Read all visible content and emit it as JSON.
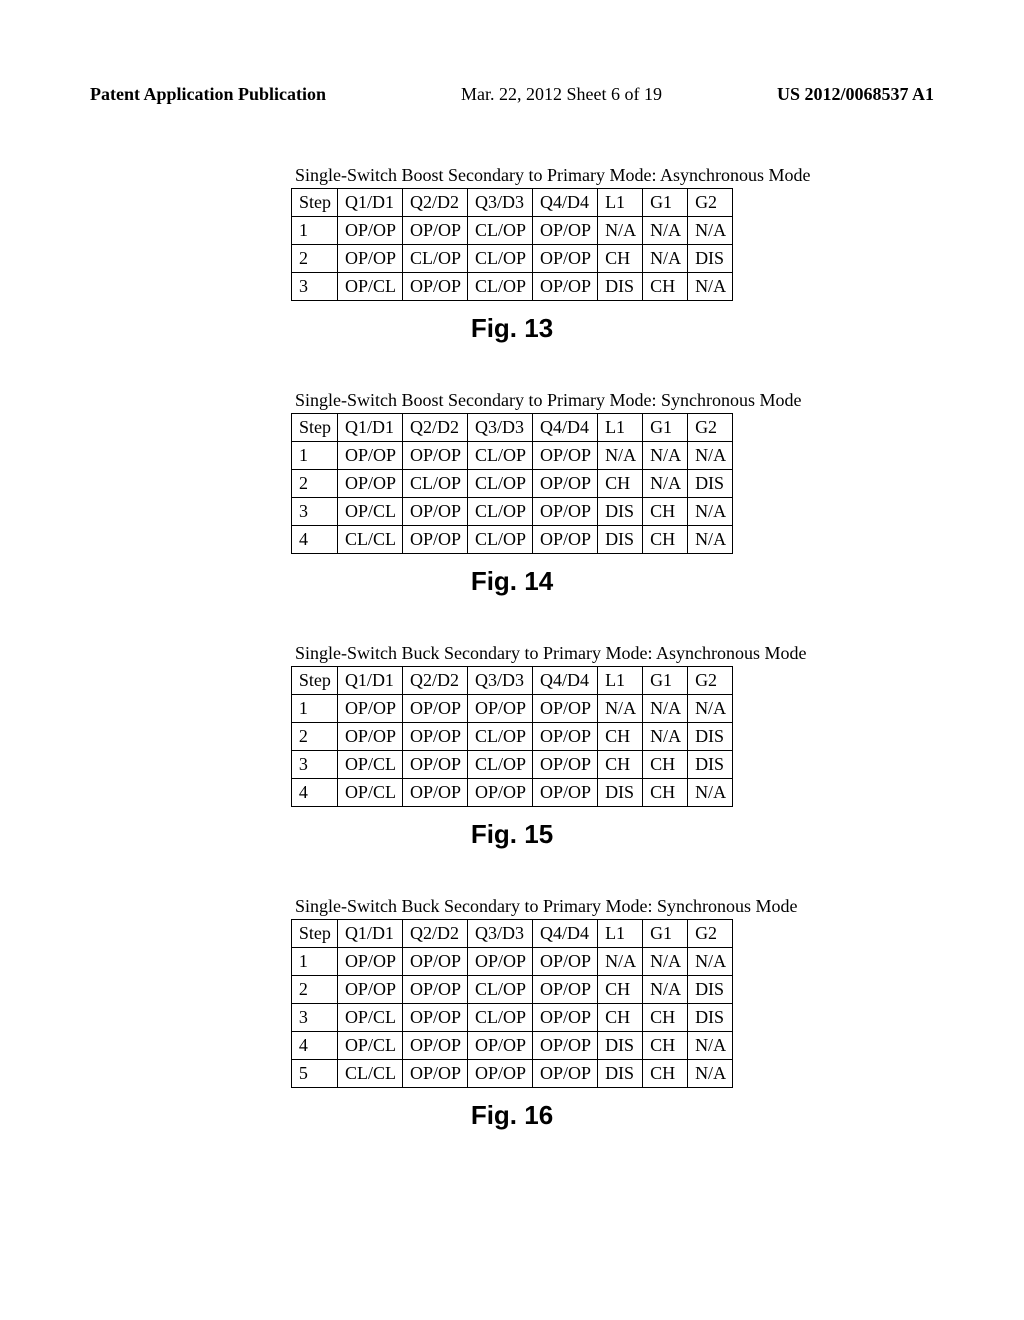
{
  "header": {
    "left": "Patent Application Publication",
    "center": "Mar. 22, 2012  Sheet 6 of 19",
    "right": "US 2012/0068537 A1"
  },
  "figures": [
    {
      "caption": "Single-Switch Boost Secondary to Primary Mode: Asynchronous Mode",
      "label": "Fig. 13",
      "columns": [
        "Step",
        "Q1/D1",
        "Q2/D2",
        "Q3/D3",
        "Q4/D4",
        "L1",
        "G1",
        "G2"
      ],
      "rows": [
        [
          "1",
          "OP/OP",
          "OP/OP",
          "CL/OP",
          "OP/OP",
          "N/A",
          "N/A",
          "N/A"
        ],
        [
          "2",
          "OP/OP",
          "CL/OP",
          "CL/OP",
          "OP/OP",
          "CH",
          "N/A",
          "DIS"
        ],
        [
          "3",
          "OP/CL",
          "OP/OP",
          "CL/OP",
          "OP/OP",
          "DIS",
          "CH",
          "N/A"
        ]
      ]
    },
    {
      "caption": "Single-Switch Boost Secondary to Primary Mode: Synchronous Mode",
      "label": "Fig. 14",
      "columns": [
        "Step",
        "Q1/D1",
        "Q2/D2",
        "Q3/D3",
        "Q4/D4",
        "L1",
        "G1",
        "G2"
      ],
      "rows": [
        [
          "1",
          "OP/OP",
          "OP/OP",
          "CL/OP",
          "OP/OP",
          "N/A",
          "N/A",
          "N/A"
        ],
        [
          "2",
          "OP/OP",
          "CL/OP",
          "CL/OP",
          "OP/OP",
          "CH",
          "N/A",
          "DIS"
        ],
        [
          "3",
          "OP/CL",
          "OP/OP",
          "CL/OP",
          "OP/OP",
          "DIS",
          "CH",
          "N/A"
        ],
        [
          "4",
          "CL/CL",
          "OP/OP",
          "CL/OP",
          "OP/OP",
          "DIS",
          "CH",
          "N/A"
        ]
      ]
    },
    {
      "caption": "Single-Switch Buck Secondary to Primary Mode: Asynchronous Mode",
      "label": "Fig. 15",
      "columns": [
        "Step",
        "Q1/D1",
        "Q2/D2",
        "Q3/D3",
        "Q4/D4",
        "L1",
        "G1",
        "G2"
      ],
      "rows": [
        [
          "1",
          "OP/OP",
          "OP/OP",
          "OP/OP",
          "OP/OP",
          "N/A",
          "N/A",
          "N/A"
        ],
        [
          "2",
          "OP/OP",
          "OP/OP",
          "CL/OP",
          "OP/OP",
          "CH",
          "N/A",
          "DIS"
        ],
        [
          "3",
          "OP/CL",
          "OP/OP",
          "CL/OP",
          "OP/OP",
          "CH",
          "CH",
          "DIS"
        ],
        [
          "4",
          "OP/CL",
          "OP/OP",
          "OP/OP",
          "OP/OP",
          "DIS",
          "CH",
          "N/A"
        ]
      ]
    },
    {
      "caption": "Single-Switch Buck Secondary to Primary Mode: Synchronous Mode",
      "label": "Fig. 16",
      "columns": [
        "Step",
        "Q1/D1",
        "Q2/D2",
        "Q3/D3",
        "Q4/D4",
        "L1",
        "G1",
        "G2"
      ],
      "rows": [
        [
          "1",
          "OP/OP",
          "OP/OP",
          "OP/OP",
          "OP/OP",
          "N/A",
          "N/A",
          "N/A"
        ],
        [
          "2",
          "OP/OP",
          "OP/OP",
          "CL/OP",
          "OP/OP",
          "CH",
          "N/A",
          "DIS"
        ],
        [
          "3",
          "OP/CL",
          "OP/OP",
          "CL/OP",
          "OP/OP",
          "CH",
          "CH",
          "DIS"
        ],
        [
          "4",
          "OP/CL",
          "OP/OP",
          "OP/OP",
          "OP/OP",
          "DIS",
          "CH",
          "N/A"
        ],
        [
          "5",
          "CL/CL",
          "OP/OP",
          "OP/OP",
          "OP/OP",
          "DIS",
          "CH",
          "N/A"
        ]
      ]
    }
  ]
}
